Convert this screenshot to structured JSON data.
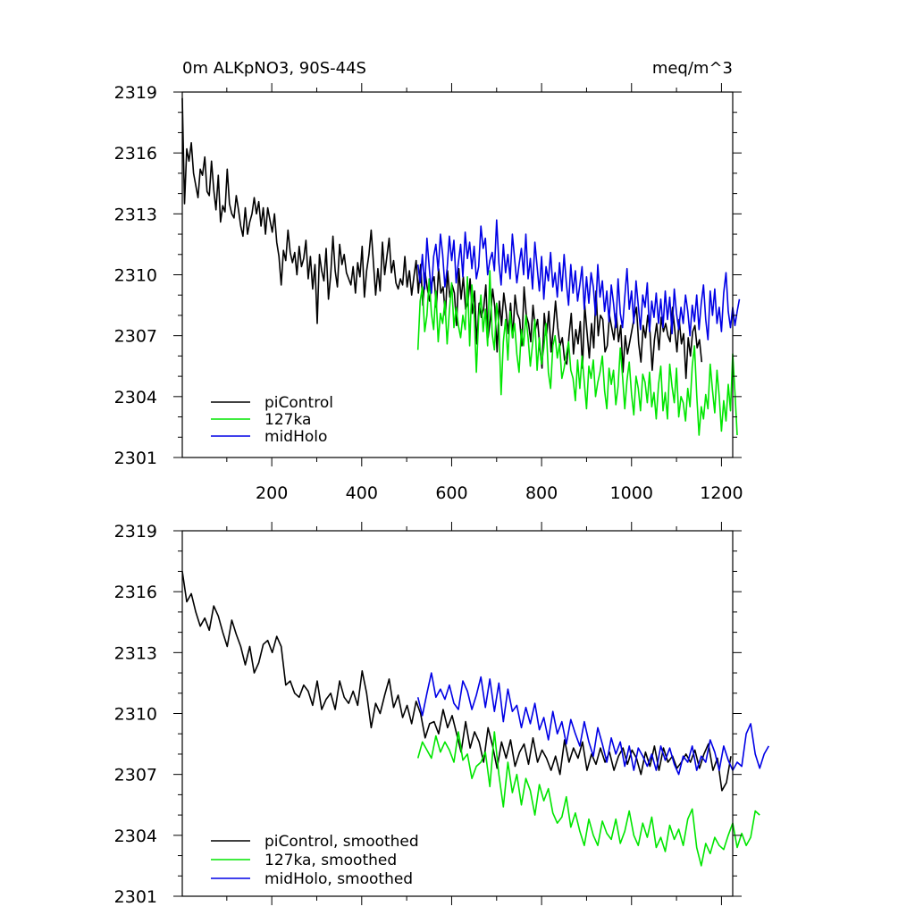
{
  "chart_data": [
    {
      "type": "line",
      "title_left": "0m ALKpNO3, 90S-44S",
      "title_right": "meq/m^3",
      "xlim": [
        1,
        1225
      ],
      "ylim": [
        2301,
        2319
      ],
      "y_ticks": [
        2301,
        2304,
        2307,
        2310,
        2313,
        2316,
        2319
      ],
      "y_tick_labels": [
        "2301",
        "2304",
        "2307",
        "2310",
        "2313",
        "2316",
        "2319"
      ],
      "x_ticks": [
        200,
        400,
        600,
        800,
        1000,
        1200
      ],
      "x_tick_labels": [
        "200",
        "400",
        "600",
        "800",
        "1000",
        "1200"
      ],
      "legend_position": "bottom-left",
      "series": [
        {
          "name": "piControl",
          "color": "#000000",
          "x_start": 1,
          "step": 5,
          "values": [
            2318.7,
            2313.5,
            2316.2,
            2315.6,
            2316.5,
            2315.0,
            2314.4,
            2313.8,
            2315.2,
            2314.9,
            2315.8,
            2314.1,
            2313.9,
            2315.6,
            2314.2,
            2313.2,
            2314.9,
            2312.6,
            2313.4,
            2313.1,
            2315.2,
            2313.5,
            2313.0,
            2312.8,
            2313.9,
            2313.2,
            2312.4,
            2311.9,
            2313.3,
            2312.0,
            2312.6,
            2313.0,
            2313.8,
            2313.0,
            2313.6,
            2312.4,
            2313.3,
            2312.0,
            2313.3,
            2312.7,
            2312.1,
            2313.0,
            2311.6,
            2310.9,
            2309.5,
            2311.2,
            2310.7,
            2312.2,
            2311.1,
            2310.6,
            2311.1,
            2310.0,
            2311.4,
            2310.4,
            2310.8,
            2311.7,
            2309.8,
            2310.9,
            2309.3,
            2310.5,
            2307.6,
            2311.0,
            2310.2,
            2309.7,
            2311.3,
            2308.8,
            2310.0,
            2311.9,
            2310.2,
            2309.4,
            2311.5,
            2310.5,
            2311.0,
            2310.1,
            2309.8,
            2309.5,
            2310.4,
            2309.1,
            2310.6,
            2309.9,
            2311.4,
            2308.9,
            2310.2,
            2311.0,
            2312.2,
            2310.6,
            2309.0,
            2310.3,
            2309.2,
            2311.6,
            2310.0,
            2310.9,
            2311.8,
            2310.1,
            2310.7,
            2309.6,
            2309.3,
            2309.8,
            2309.5,
            2310.9,
            2309.4,
            2310.2,
            2309.0,
            2309.9,
            2310.7,
            2309.1,
            2310.5,
            2308.5,
            2310.1,
            2309.3,
            2308.7,
            2309.6,
            2309.9,
            2308.4,
            2310.3,
            2309.1,
            2309.4,
            2308.0,
            2310.2,
            2308.9,
            2309.5,
            2309.1,
            2307.5,
            2310.3,
            2308.8,
            2309.9,
            2308.3,
            2308.6,
            2309.8,
            2308.1,
            2309.2,
            2306.6,
            2308.6,
            2307.9,
            2308.3,
            2309.5,
            2306.9,
            2307.8,
            2309.3,
            2308.4,
            2306.2,
            2308.7,
            2307.5,
            2309.1,
            2308.2,
            2307.1,
            2308.6,
            2306.9,
            2309.0,
            2308.1,
            2307.8,
            2306.5,
            2309.4,
            2308.0,
            2307.6,
            2306.7,
            2308.5,
            2307.3,
            2307.8,
            2306.4,
            2305.4,
            2308.1,
            2307.0,
            2308.2,
            2306.2,
            2307.3,
            2308.7,
            2307.4,
            2306.5,
            2306.9,
            2305.8,
            2305.6,
            2307.0,
            2308.1,
            2306.1,
            2307.3,
            2306.6,
            2307.7,
            2305.4,
            2308.5,
            2307.2,
            2305.9,
            2307.6,
            2306.4,
            2309.2,
            2307.0,
            2308.0,
            2307.8,
            2306.2,
            2306.5,
            2308.0,
            2307.4,
            2306.8,
            2308.1,
            2306.7,
            2307.5,
            2305.2,
            2307.0,
            2306.1,
            2306.7,
            2307.3,
            2307.9,
            2308.4,
            2306.6,
            2305.7,
            2307.5,
            2306.9,
            2308.0,
            2307.2,
            2305.3,
            2306.8,
            2307.6,
            2306.3,
            2307.9,
            2307.2,
            2307.6,
            2307.0,
            2306.7,
            2308.4,
            2307.3,
            2306.2,
            2307.8,
            2306.6,
            2307.1,
            2304.9,
            2306.9,
            2306.0,
            2307.2,
            2307.5,
            2306.4,
            2306.8,
            2305.7
          ]
        },
        {
          "name": "127ka",
          "color": "#00e600",
          "x_start": 525,
          "step": 5,
          "values": [
            2306.3,
            2308.7,
            2309.4,
            2307.2,
            2308.0,
            2309.8,
            2308.1,
            2307.3,
            2309.2,
            2306.7,
            2308.1,
            2307.6,
            2308.7,
            2306.6,
            2308.2,
            2309.6,
            2307.4,
            2308.4,
            2307.5,
            2306.9,
            2308.0,
            2307.3,
            2309.9,
            2306.5,
            2309.5,
            2308.2,
            2305.2,
            2307.9,
            2309.0,
            2307.2,
            2308.3,
            2306.5,
            2310.2,
            2307.1,
            2306.3,
            2308.6,
            2307.5,
            2304.1,
            2306.7,
            2307.8,
            2305.8,
            2308.2,
            2306.9,
            2307.6,
            2306.1,
            2305.2,
            2307.3,
            2306.5,
            2308.0,
            2306.9,
            2305.5,
            2306.6,
            2307.8,
            2305.3,
            2306.9,
            2305.6,
            2306.4,
            2307.6,
            2305.2,
            2304.4,
            2306.5,
            2307.0,
            2305.9,
            2306.6,
            2304.9,
            2305.4,
            2306.1,
            2306.7,
            2305.3,
            2304.9,
            2303.8,
            2305.8,
            2304.4,
            2306.0,
            2304.7,
            2303.4,
            2305.5,
            2304.9,
            2305.8,
            2304.0,
            2304.7,
            2305.2,
            2306.0,
            2304.3,
            2303.4,
            2305.4,
            2304.6,
            2305.3,
            2303.6,
            2304.5,
            2306.4,
            2305.0,
            2303.4,
            2304.8,
            2305.7,
            2304.1,
            2303.1,
            2305.0,
            2304.4,
            2303.3,
            2305.1,
            2304.7,
            2303.7,
            2305.2,
            2303.5,
            2304.2,
            2302.9,
            2304.6,
            2305.5,
            2303.3,
            2304.2,
            2302.9,
            2305.6,
            2304.5,
            2303.7,
            2305.4,
            2303.0,
            2304.0,
            2303.7,
            2302.8,
            2304.4,
            2303.5,
            2305.5,
            2306.5,
            2304.1,
            2302.1,
            2303.5,
            2302.9,
            2304.1,
            2303.4,
            2305.6,
            2304.3,
            2303.2,
            2305.3,
            2304.0,
            2302.3,
            2303.8,
            2302.8,
            2304.6,
            2303.3,
            2306.1,
            2304.2,
            2302.1
          ]
        },
        {
          "name": "midHolo",
          "color": "#0000e6",
          "x_start": 525,
          "step": 5,
          "values": [
            2310.5,
            2309.6,
            2311.0,
            2309.3,
            2311.8,
            2310.4,
            2309.1,
            2310.9,
            2311.5,
            2310.2,
            2312.0,
            2311.0,
            2309.4,
            2310.3,
            2311.9,
            2310.7,
            2311.7,
            2309.6,
            2310.6,
            2311.5,
            2309.9,
            2312.1,
            2310.8,
            2311.6,
            2310.3,
            2311.4,
            2309.8,
            2310.4,
            2312.4,
            2311.3,
            2311.8,
            2310.0,
            2310.7,
            2311.1,
            2310.2,
            2312.7,
            2310.6,
            2309.5,
            2311.5,
            2310.1,
            2311.0,
            2309.8,
            2312.0,
            2310.8,
            2309.6,
            2310.5,
            2311.3,
            2310.0,
            2312.0,
            2309.8,
            2310.8,
            2309.3,
            2311.6,
            2310.4,
            2309.2,
            2310.9,
            2308.8,
            2310.4,
            2309.7,
            2311.1,
            2309.4,
            2310.1,
            2308.9,
            2310.6,
            2309.2,
            2311.0,
            2309.6,
            2308.5,
            2310.5,
            2309.1,
            2310.2,
            2308.7,
            2309.5,
            2310.4,
            2308.3,
            2309.9,
            2308.6,
            2310.1,
            2309.4,
            2308.0,
            2310.5,
            2308.9,
            2309.7,
            2308.2,
            2309.2,
            2307.7,
            2309.5,
            2308.6,
            2307.4,
            2309.8,
            2308.1,
            2307.4,
            2308.9,
            2310.3,
            2308.3,
            2309.2,
            2307.6,
            2309.7,
            2308.5,
            2307.3,
            2309.0,
            2308.4,
            2309.6,
            2307.2,
            2308.7,
            2307.9,
            2309.1,
            2307.6,
            2308.8,
            2307.4,
            2309.2,
            2307.8,
            2308.9,
            2307.1,
            2309.3,
            2308.1,
            2307.3,
            2308.4,
            2307.6,
            2309.0,
            2308.2,
            2307.0,
            2308.5,
            2307.7,
            2309.0,
            2307.3,
            2308.6,
            2309.5,
            2307.8,
            2306.8,
            2309.2,
            2308.0,
            2309.3,
            2307.6,
            2308.4,
            2307.2,
            2309.1,
            2310.1,
            2308.2,
            2307.4,
            2308.4,
            2307.5,
            2308.2,
            2308.8
          ]
        }
      ]
    },
    {
      "type": "line",
      "xlim": [
        1,
        1225
      ],
      "ylim": [
        2301,
        2319
      ],
      "y_ticks": [
        2301,
        2304,
        2307,
        2310,
        2313,
        2316,
        2319
      ],
      "y_tick_labels": [
        "2301",
        "2304",
        "2307",
        "2310",
        "2313",
        "2316",
        "2319"
      ],
      "x_ticks": [
        200,
        400,
        600,
        800,
        1000,
        1200
      ],
      "legend_position": "bottom-left",
      "series": [
        {
          "name": "piControl, smoothed",
          "color": "#000000",
          "x_start": 1,
          "step": 10,
          "values": [
            2317.0,
            2315.5,
            2315.9,
            2315.0,
            2314.3,
            2314.7,
            2314.1,
            2315.3,
            2314.8,
            2314.0,
            2313.3,
            2314.6,
            2313.9,
            2313.3,
            2312.4,
            2313.3,
            2312.0,
            2312.5,
            2313.4,
            2313.6,
            2313.0,
            2313.8,
            2313.3,
            2311.4,
            2311.6,
            2311.0,
            2310.8,
            2311.4,
            2311.1,
            2310.4,
            2311.6,
            2310.2,
            2310.7,
            2311.0,
            2310.2,
            2311.6,
            2310.8,
            2310.5,
            2311.1,
            2310.4,
            2312.1,
            2311.0,
            2309.3,
            2310.5,
            2310.0,
            2310.9,
            2311.7,
            2310.3,
            2310.9,
            2309.8,
            2310.4,
            2309.5,
            2310.6,
            2310.0,
            2308.8,
            2309.5,
            2309.6,
            2309.0,
            2310.2,
            2309.3,
            2309.9,
            2309.0,
            2308.1,
            2309.6,
            2308.3,
            2309.1,
            2308.6,
            2307.6,
            2309.3,
            2308.4,
            2307.3,
            2308.6,
            2307.8,
            2308.7,
            2307.4,
            2308.1,
            2308.5,
            2307.5,
            2308.8,
            2307.6,
            2308.2,
            2307.8,
            2307.2,
            2307.9,
            2307.0,
            2308.7,
            2307.6,
            2308.3,
            2307.8,
            2308.6,
            2307.2,
            2308.0,
            2307.5,
            2308.3,
            2307.6,
            2308.1,
            2307.2,
            2307.9,
            2308.3,
            2307.5,
            2308.2,
            2307.8,
            2307.0,
            2308.1,
            2307.4,
            2308.4,
            2307.2,
            2308.3,
            2307.6,
            2307.9,
            2307.3,
            2307.6,
            2308.0,
            2307.6,
            2308.2,
            2307.3,
            2308.0,
            2308.5,
            2307.2,
            2307.8,
            2306.2,
            2306.6,
            2307.9
          ]
        },
        {
          "name": "127ka, smoothed",
          "color": "#00e600",
          "x_start": 525,
          "step": 10,
          "values": [
            2307.8,
            2308.6,
            2308.2,
            2307.8,
            2308.9,
            2308.1,
            2308.6,
            2308.2,
            2307.6,
            2309.1,
            2307.7,
            2308.0,
            2306.8,
            2307.4,
            2307.6,
            2308.1,
            2306.4,
            2309.1,
            2307.0,
            2305.4,
            2307.6,
            2306.1,
            2307.0,
            2305.5,
            2306.8,
            2306.2,
            2305.0,
            2306.5,
            2305.7,
            2306.3,
            2305.1,
            2304.6,
            2304.9,
            2305.9,
            2304.4,
            2305.1,
            2304.2,
            2303.5,
            2304.8,
            2304.0,
            2303.5,
            2304.7,
            2304.1,
            2303.8,
            2304.8,
            2303.6,
            2304.2,
            2305.2,
            2304.0,
            2303.5,
            2304.6,
            2303.9,
            2304.9,
            2303.4,
            2303.9,
            2303.2,
            2304.5,
            2303.8,
            2304.3,
            2303.5,
            2304.8,
            2305.3,
            2303.4,
            2302.5,
            2303.6,
            2303.1,
            2303.9,
            2303.5,
            2303.3,
            2304.0,
            2304.6,
            2303.4,
            2304.1,
            2303.5,
            2303.9,
            2305.2,
            2305.0
          ]
        },
        {
          "name": "midHolo, smoothed",
          "color": "#0000e6",
          "x_start": 525,
          "step": 10,
          "values": [
            2310.8,
            2309.9,
            2311.0,
            2312.0,
            2310.8,
            2311.2,
            2310.7,
            2311.4,
            2310.5,
            2310.2,
            2311.6,
            2311.1,
            2310.2,
            2310.9,
            2311.8,
            2310.3,
            2311.7,
            2310.1,
            2311.5,
            2309.6,
            2311.2,
            2310.1,
            2310.4,
            2309.3,
            2310.3,
            2309.5,
            2310.5,
            2309.2,
            2309.8,
            2308.7,
            2310.1,
            2309.0,
            2309.6,
            2308.5,
            2309.7,
            2309.0,
            2308.4,
            2309.6,
            2308.6,
            2307.9,
            2309.3,
            2308.5,
            2307.6,
            2308.8,
            2308.0,
            2308.6,
            2307.4,
            2308.4,
            2307.2,
            2308.3,
            2307.9,
            2307.4,
            2308.0,
            2307.2,
            2308.4,
            2307.7,
            2308.3,
            2307.5,
            2307.0,
            2307.9,
            2307.6,
            2308.4,
            2307.2,
            2307.9,
            2307.6,
            2308.7,
            2308.1,
            2307.2,
            2308.4,
            2307.7,
            2307.2,
            2307.6,
            2307.4,
            2309.0,
            2309.5,
            2308.0,
            2307.3,
            2308.0,
            2308.4
          ]
        }
      ]
    }
  ]
}
